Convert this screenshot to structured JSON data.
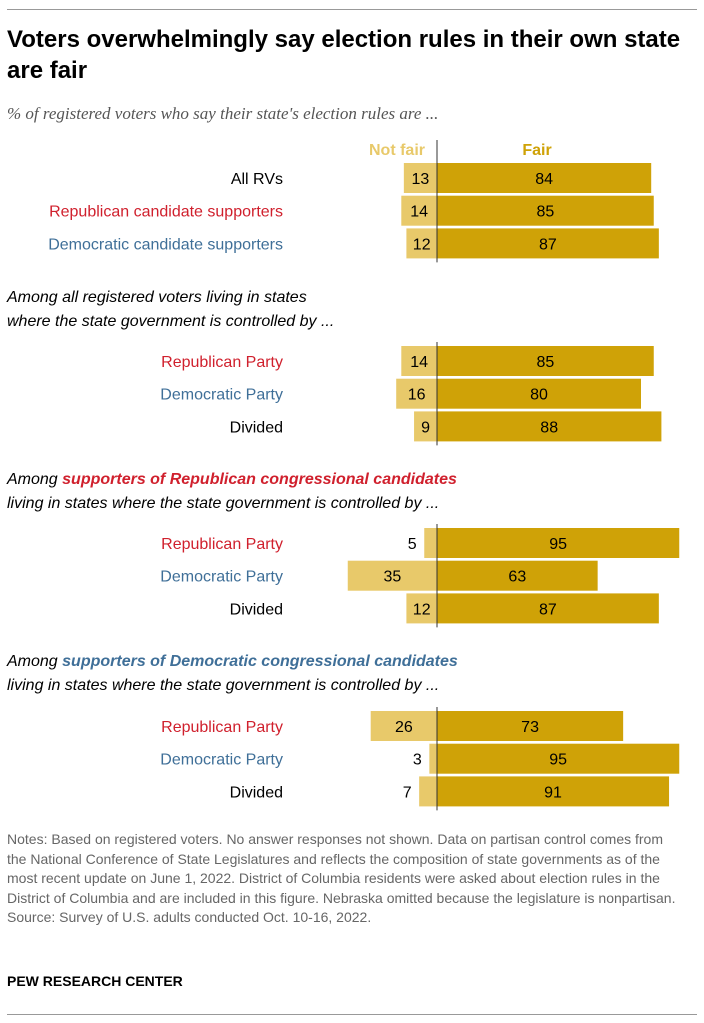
{
  "title": "Voters overwhelmingly say election rules in their own state are fair",
  "subtitle": "% of registered voters who say their state's election rules are ...",
  "colors": {
    "not_fair": "#e8c96a",
    "fair": "#cfa207",
    "republican": "#d0202d",
    "democratic": "#3f6f98",
    "neutral": "#000000"
  },
  "chart_data": {
    "type": "bar",
    "orientation": "horizontal-diverging",
    "legend": {
      "not_fair": "Not fair",
      "fair": "Fair"
    },
    "groups": [
      {
        "intro": [],
        "rows": [
          {
            "label": "All RVs",
            "party": "neutral",
            "not_fair": 13,
            "fair": 84
          },
          {
            "label": "Republican candidate supporters",
            "party": "republican",
            "not_fair": 14,
            "fair": 85
          },
          {
            "label": "Democratic candidate supporters",
            "party": "democratic",
            "not_fair": 12,
            "fair": 87
          }
        ]
      },
      {
        "intro": [
          [
            {
              "text": "Among all registered voters living in states"
            }
          ],
          [
            {
              "text": "where the state government is controlled by ..."
            }
          ]
        ],
        "rows": [
          {
            "label": "Republican Party",
            "party": "republican",
            "not_fair": 14,
            "fair": 85
          },
          {
            "label": "Democratic Party",
            "party": "democratic",
            "not_fair": 16,
            "fair": 80
          },
          {
            "label": "Divided",
            "party": "neutral",
            "not_fair": 9,
            "fair": 88
          }
        ]
      },
      {
        "intro": [
          [
            {
              "text": "Among "
            },
            {
              "text": "supporters of Republican congressional candidates",
              "style": "republican"
            }
          ],
          [
            {
              "text": "living in states where the state government is controlled by ..."
            }
          ]
        ],
        "rows": [
          {
            "label": "Republican Party",
            "party": "republican",
            "not_fair": 5,
            "fair": 95
          },
          {
            "label": "Democratic Party",
            "party": "democratic",
            "not_fair": 35,
            "fair": 63
          },
          {
            "label": "Divided",
            "party": "neutral",
            "not_fair": 12,
            "fair": 87
          }
        ]
      },
      {
        "intro": [
          [
            {
              "text": "Among "
            },
            {
              "text": "supporters of Democratic congressional candidates",
              "style": "democratic"
            }
          ],
          [
            {
              "text": "living in states where the state government is controlled by ..."
            }
          ]
        ],
        "rows": [
          {
            "label": "Republican Party",
            "party": "republican",
            "not_fair": 26,
            "fair": 73
          },
          {
            "label": "Democratic Party",
            "party": "democratic",
            "not_fair": 3,
            "fair": 95
          },
          {
            "label": "Divided",
            "party": "neutral",
            "not_fair": 7,
            "fair": 91
          }
        ]
      }
    ]
  },
  "notes": [
    "Notes: Based on registered voters. No answer responses not shown. Data on partisan control comes from the National Conference of State Legislatures and reflects the composition of state governments as of the most recent update on June 1, 2022. District of Columbia residents were asked about election rules in the District of Columbia and are included in this figure. Nebraska omitted because the legislature is nonpartisan.",
    "Source: Survey of U.S. adults conducted Oct. 10-16, 2022."
  ],
  "brand": "PEW RESEARCH CENTER"
}
